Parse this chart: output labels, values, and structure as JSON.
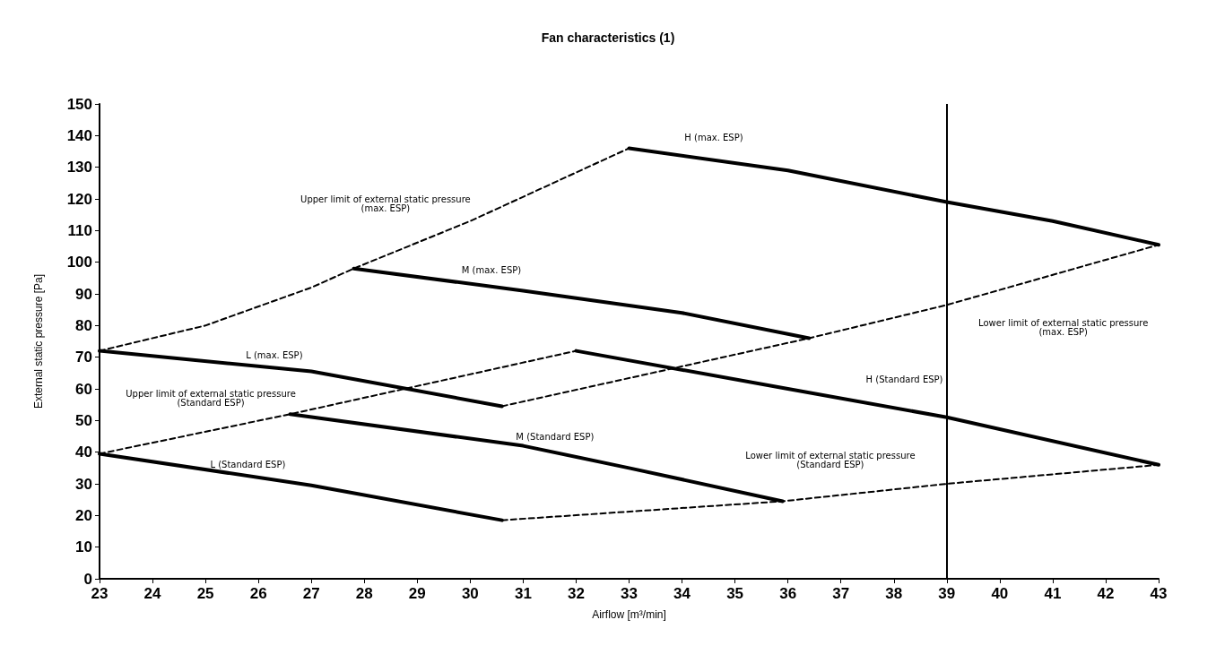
{
  "chart_data": {
    "type": "line",
    "title": "Fan characteristics (1)",
    "xlabel": "Airflow [m³/min]",
    "ylabel": "External static pressure [Pa]",
    "xlim": [
      23,
      43
    ],
    "xticks": [
      23,
      24,
      25,
      26,
      27,
      28,
      29,
      30,
      31,
      32,
      33,
      34,
      35,
      36,
      37,
      38,
      39,
      40,
      41,
      42,
      43
    ],
    "ylim": [
      0,
      150
    ],
    "yticks": [
      0,
      10,
      20,
      30,
      40,
      50,
      60,
      70,
      80,
      90,
      100,
      110,
      120,
      130,
      140,
      150
    ],
    "grid": false,
    "marker": "none",
    "series": [
      {
        "color": "#000000",
        "line_style": "solid",
        "x": [
          33,
          36,
          39,
          41,
          43
        ],
        "values": [
          136,
          129,
          119,
          113,
          105.5
        ]
      },
      {
        "color": "#000000",
        "line_style": "solid",
        "x": [
          27.8,
          31,
          34,
          36.4
        ],
        "values": [
          98,
          91,
          84,
          76
        ]
      },
      {
        "color": "#000000",
        "line_style": "solid",
        "x": [
          23,
          27,
          30.6
        ],
        "values": [
          72,
          65.5,
          54.5
        ]
      },
      {
        "color": "#000000",
        "line_style": "solid",
        "x": [
          32,
          36,
          39,
          43
        ],
        "values": [
          72,
          60,
          51,
          36
        ]
      },
      {
        "color": "#000000",
        "line_style": "solid",
        "x": [
          26.6,
          31,
          33,
          35.9
        ],
        "values": [
          52,
          42,
          35,
          24.5
        ]
      },
      {
        "color": "#000000",
        "line_style": "solid",
        "x": [
          23,
          27,
          30.6
        ],
        "values": [
          39.5,
          29.5,
          18.5
        ]
      },
      {
        "color": "#000000",
        "line_style": "dashed",
        "x": [
          23,
          25,
          27,
          27.8,
          30,
          33
        ],
        "values": [
          72,
          80,
          92,
          98,
          113,
          136
        ]
      },
      {
        "color": "#000000",
        "line_style": "dashed",
        "x": [
          30.6,
          36.4,
          39,
          43
        ],
        "values": [
          54.5,
          76,
          86.5,
          105.5
        ]
      },
      {
        "color": "#000000",
        "line_style": "dashed",
        "x": [
          23,
          26.6,
          32
        ],
        "values": [
          39.5,
          52,
          72
        ]
      },
      {
        "color": "#000000",
        "line_style": "dashed",
        "x": [
          30.6,
          35.9,
          39,
          43
        ],
        "values": [
          18.5,
          24.5,
          30,
          36
        ]
      }
    ],
    "ref_lines": [
      {
        "axis": "x",
        "value": 39,
        "color": "#000000"
      }
    ],
    "annotations": [
      "H (max. ESP)",
      "Upper limit of external static pressure\n(max. ESP)",
      "M (max. ESP)",
      "Lower limit of external static pressure\n(max. ESP)",
      "L (max. ESP)",
      "Upper limit of external static pressure\n(Standard ESP)",
      "H (Standard ESP)",
      "M (Standard ESP)",
      "Lower limit of external static pressure\n(Standard ESP)",
      "L (Standard ESP)"
    ]
  }
}
